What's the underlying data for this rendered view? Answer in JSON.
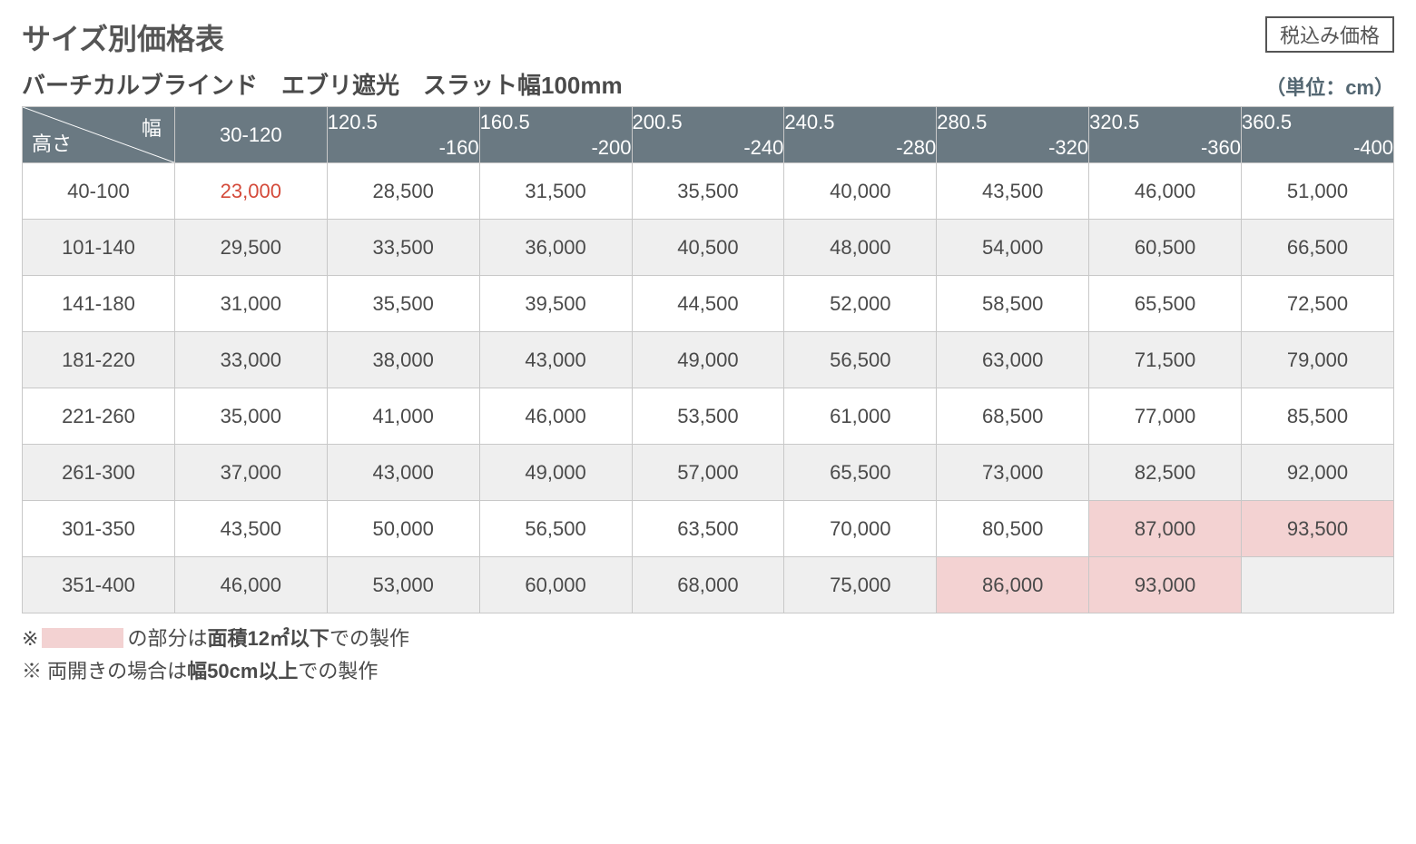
{
  "header": {
    "title": "サイズ別価格表",
    "tax_label": "税込み価格",
    "subtitle": "バーチカルブラインド　エブリ遮光　スラット幅100mm",
    "unit_label": "（単位：cm）"
  },
  "table": {
    "corner": {
      "width_label": "幅",
      "height_label": "高さ"
    },
    "columns": [
      {
        "line1": "30-120",
        "single": true
      },
      {
        "line1": "120.5",
        "line2": "-160"
      },
      {
        "line1": "160.5",
        "line2": "-200"
      },
      {
        "line1": "200.5",
        "line2": "-240"
      },
      {
        "line1": "240.5",
        "line2": "-280"
      },
      {
        "line1": "280.5",
        "line2": "-320"
      },
      {
        "line1": "320.5",
        "line2": "-360"
      },
      {
        "line1": "360.5",
        "line2": "-400"
      }
    ],
    "rows": [
      {
        "h": "40-100",
        "cells": [
          {
            "v": "23,000",
            "red": true
          },
          {
            "v": "28,500"
          },
          {
            "v": "31,500"
          },
          {
            "v": "35,500"
          },
          {
            "v": "40,000"
          },
          {
            "v": "43,500"
          },
          {
            "v": "46,000"
          },
          {
            "v": "51,000"
          }
        ],
        "zebra": false
      },
      {
        "h": "101-140",
        "cells": [
          {
            "v": "29,500"
          },
          {
            "v": "33,500"
          },
          {
            "v": "36,000"
          },
          {
            "v": "40,500"
          },
          {
            "v": "48,000"
          },
          {
            "v": "54,000"
          },
          {
            "v": "60,500"
          },
          {
            "v": "66,500"
          }
        ],
        "zebra": true
      },
      {
        "h": "141-180",
        "cells": [
          {
            "v": "31,000"
          },
          {
            "v": "35,500"
          },
          {
            "v": "39,500"
          },
          {
            "v": "44,500"
          },
          {
            "v": "52,000"
          },
          {
            "v": "58,500"
          },
          {
            "v": "65,500"
          },
          {
            "v": "72,500"
          }
        ],
        "zebra": false
      },
      {
        "h": "181-220",
        "cells": [
          {
            "v": "33,000"
          },
          {
            "v": "38,000"
          },
          {
            "v": "43,000"
          },
          {
            "v": "49,000"
          },
          {
            "v": "56,500"
          },
          {
            "v": "63,000"
          },
          {
            "v": "71,500"
          },
          {
            "v": "79,000"
          }
        ],
        "zebra": true
      },
      {
        "h": "221-260",
        "cells": [
          {
            "v": "35,000"
          },
          {
            "v": "41,000"
          },
          {
            "v": "46,000"
          },
          {
            "v": "53,500"
          },
          {
            "v": "61,000"
          },
          {
            "v": "68,500"
          },
          {
            "v": "77,000"
          },
          {
            "v": "85,500"
          }
        ],
        "zebra": false
      },
      {
        "h": "261-300",
        "cells": [
          {
            "v": "37,000"
          },
          {
            "v": "43,000"
          },
          {
            "v": "49,000"
          },
          {
            "v": "57,000"
          },
          {
            "v": "65,500"
          },
          {
            "v": "73,000"
          },
          {
            "v": "82,500"
          },
          {
            "v": "92,000"
          }
        ],
        "zebra": true
      },
      {
        "h": "301-350",
        "cells": [
          {
            "v": "43,500"
          },
          {
            "v": "50,000"
          },
          {
            "v": "56,500"
          },
          {
            "v": "63,500"
          },
          {
            "v": "70,000"
          },
          {
            "v": "80,500"
          },
          {
            "v": "87,000",
            "pink": true
          },
          {
            "v": "93,500",
            "pink": true
          }
        ],
        "zebra": false
      },
      {
        "h": "351-400",
        "cells": [
          {
            "v": "46,000"
          },
          {
            "v": "53,000"
          },
          {
            "v": "60,000"
          },
          {
            "v": "68,000"
          },
          {
            "v": "75,000"
          },
          {
            "v": "86,000",
            "pink": true
          },
          {
            "v": "93,000",
            "pink": true
          },
          {
            "v": ""
          }
        ],
        "zebra": true
      }
    ],
    "colors": {
      "header_bg": "#6a7982",
      "header_fg": "#ffffff",
      "border": "#c8c8c8",
      "zebra": "#efefef",
      "pink": "#f3d2d2",
      "red_text": "#d44a3a"
    }
  },
  "notes": {
    "n1_prefix": "※",
    "n1_mid": "の部分は",
    "n1_bold": "面積12㎡以下",
    "n1_suffix": "での製作",
    "n2_prefix": "※ 両開きの場合は",
    "n2_bold": "幅50cm以上",
    "n2_suffix": "での製作"
  }
}
